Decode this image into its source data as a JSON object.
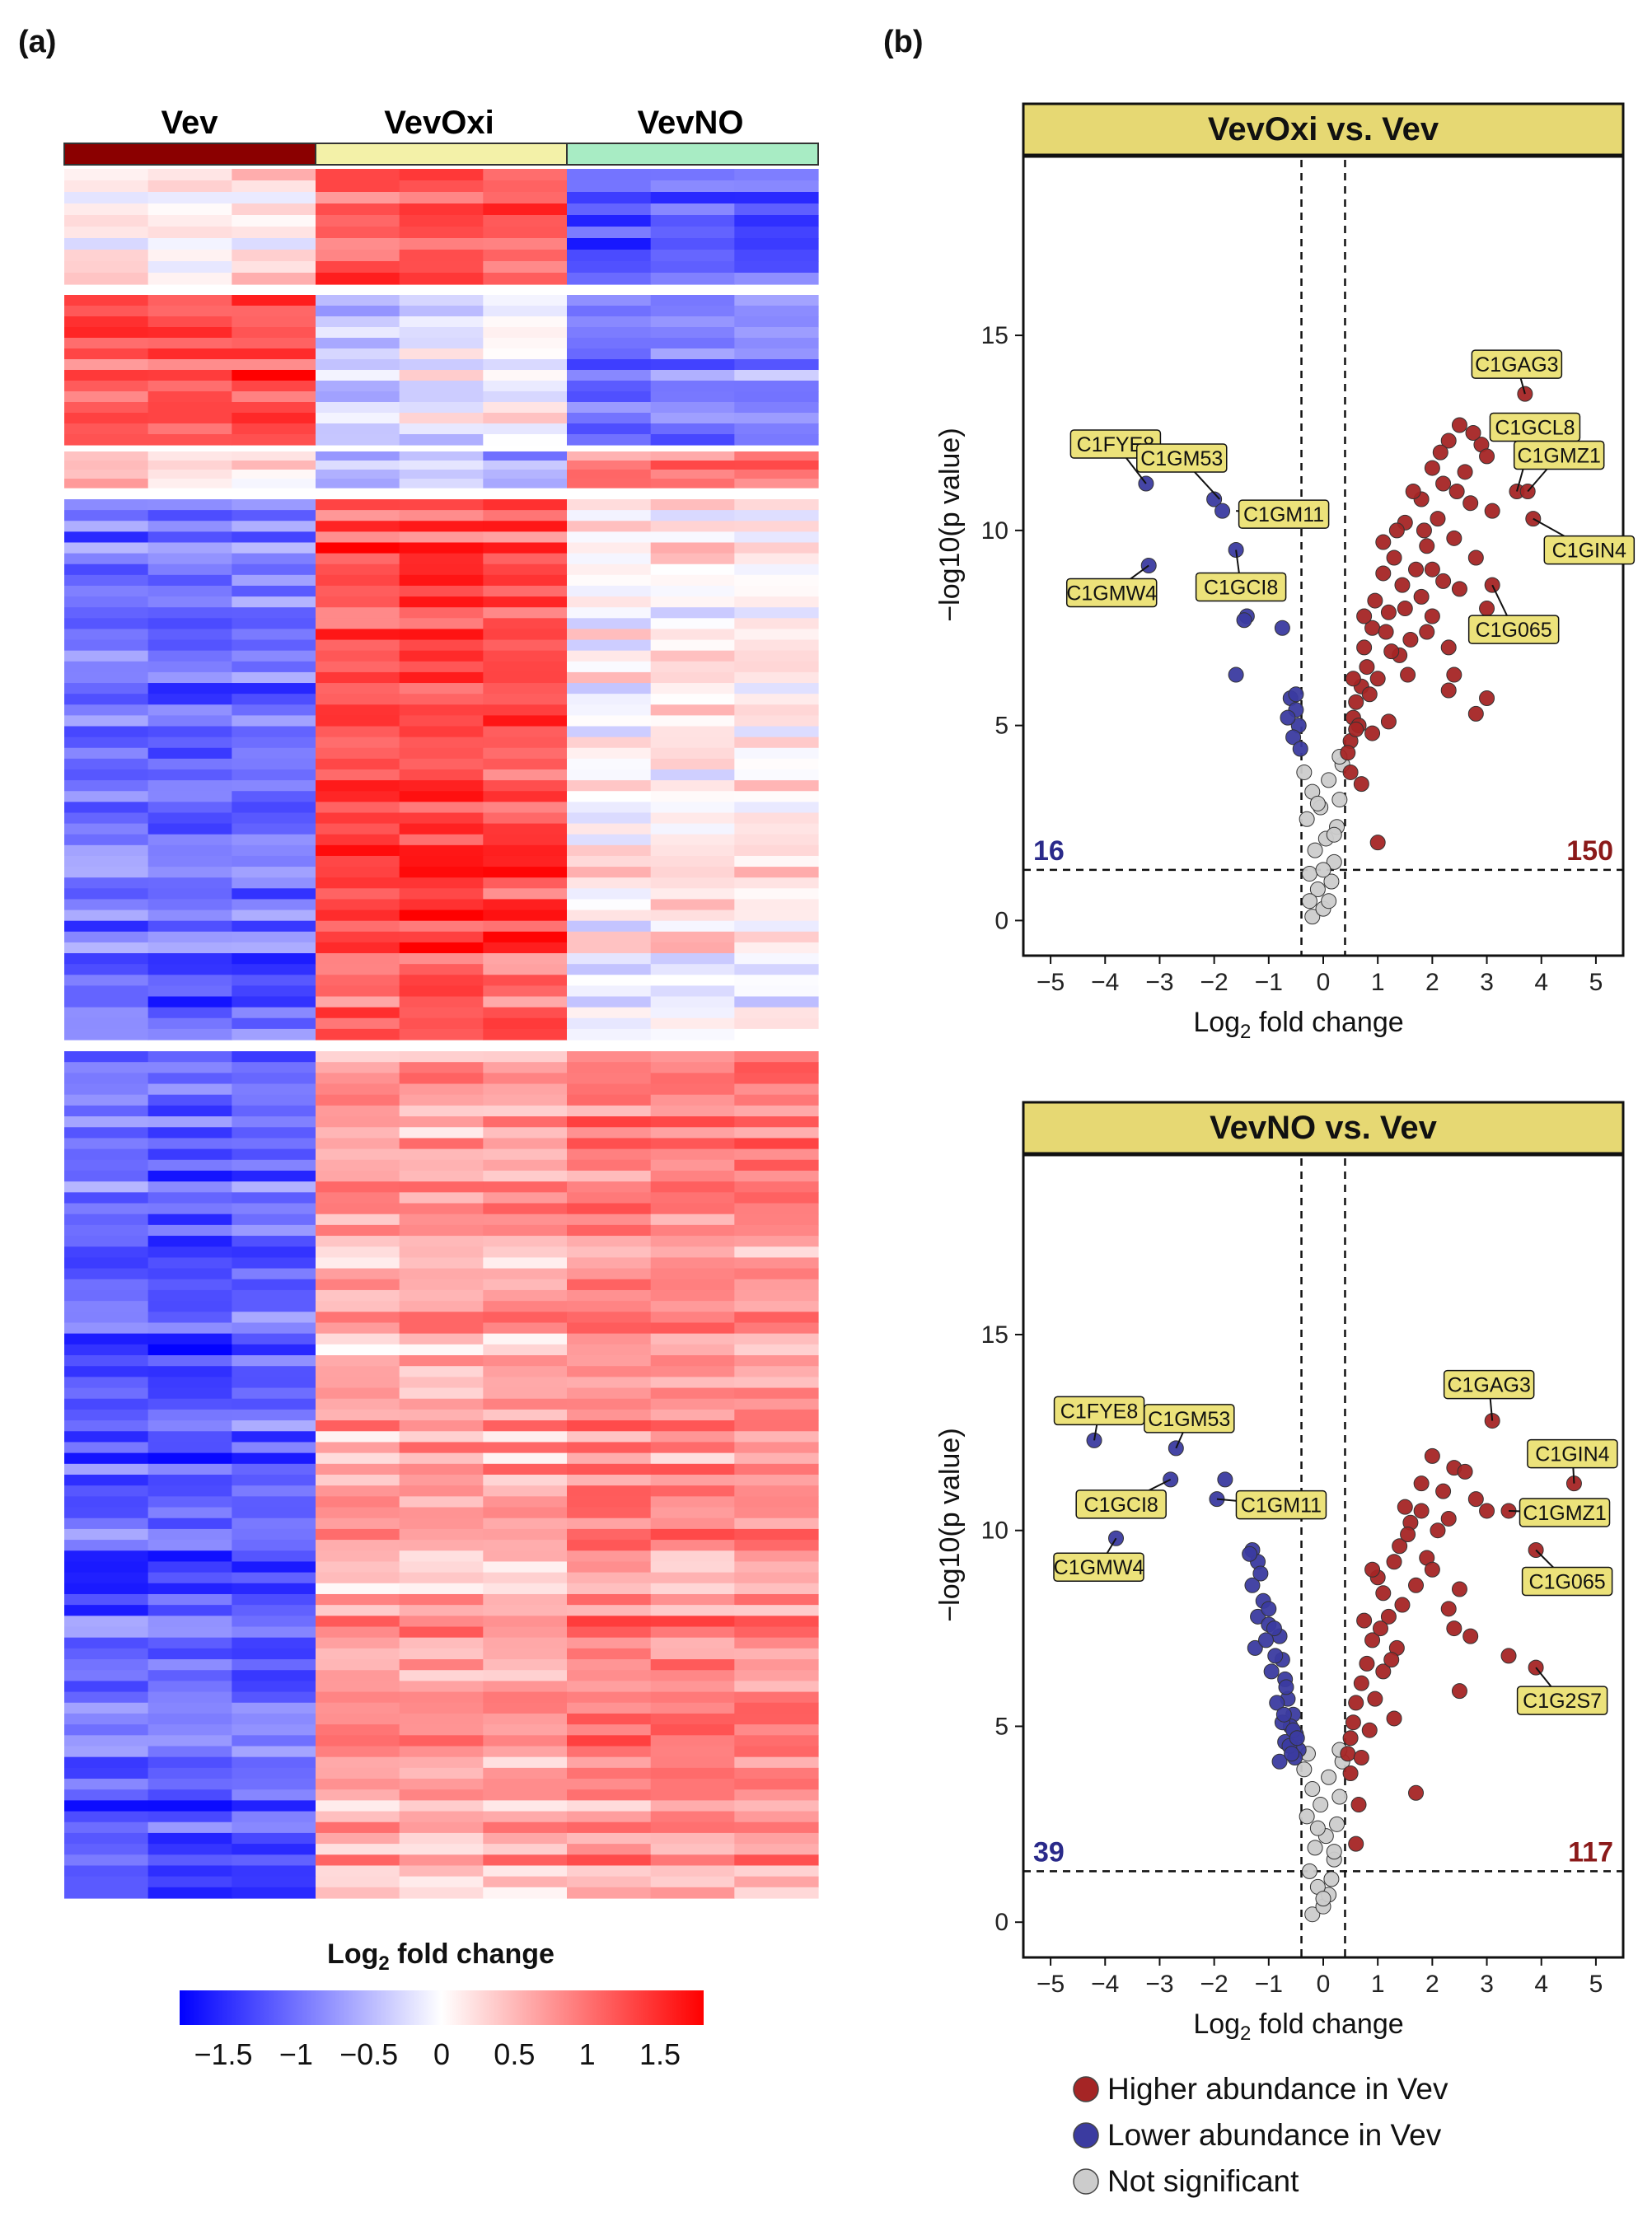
{
  "panel_labels": {
    "a": "(a)",
    "b": "(b)"
  },
  "heatmap": {
    "groups": [
      {
        "name": "Vev",
        "color": "#8b0000"
      },
      {
        "name": "VevOxi",
        "color": "#f3f1a8"
      },
      {
        "name": "VevNO",
        "color": "#a8ecc4"
      }
    ],
    "colorbar": {
      "title": "Log2 fold change",
      "ticks": [
        "−1.5",
        "−1",
        "−0.5",
        "0",
        "0.5",
        "1",
        "1.5"
      ],
      "tick_values": [
        -1.5,
        -1,
        -0.5,
        0,
        0.5,
        1,
        1.5
      ],
      "range": [
        -1.8,
        1.8
      ],
      "low_color": "#0000ff",
      "mid_color": "#ffffff",
      "high_color": "#ff0000"
    }
  },
  "chart_data": [
    {
      "type": "heatmap",
      "columns": [
        "Vev",
        "Vev",
        "Vev",
        "VevOxi",
        "VevOxi",
        "VevOxi",
        "VevNO",
        "VevNO",
        "VevNO"
      ],
      "clusters": [
        {
          "rows": 10,
          "mean_profile": [
            0.1,
            0.0,
            0.2,
            1.1,
            1.2,
            1.1,
            -1.3,
            -1.2,
            -1.2
          ]
        },
        {
          "rows": 14,
          "mean_profile": [
            1.2,
            1.3,
            1.3,
            -0.3,
            -0.2,
            -0.1,
            -1.0,
            -0.9,
            -0.9
          ]
        },
        {
          "rows": 4,
          "mean_profile": [
            0.4,
            0.2,
            0.1,
            -0.6,
            -0.5,
            -0.7,
            0.9,
            0.9,
            0.9
          ]
        },
        {
          "rows": 50,
          "mean_profile": [
            -1.0,
            -1.1,
            -1.0,
            1.2,
            1.3,
            1.2,
            0.0,
            0.1,
            0.1
          ]
        },
        {
          "rows": 78,
          "mean_profile": [
            -1.1,
            -1.2,
            -1.1,
            0.6,
            0.6,
            0.6,
            0.8,
            0.8,
            0.8
          ]
        }
      ]
    },
    {
      "type": "scatter",
      "title": "VevOxi vs. Vev",
      "xlabel": "Log2 fold change",
      "ylabel": "−log10(p value)",
      "xlim": [
        -5.5,
        5.5
      ],
      "ylim": [
        -0.9,
        19.5
      ],
      "xticks": [
        -5,
        -4,
        -3,
        -2,
        -1,
        0,
        1,
        2,
        3,
        4,
        5
      ],
      "yticks": [
        0,
        5,
        10,
        15
      ],
      "vlines": [
        -0.4,
        0.4
      ],
      "hline": 1.3,
      "count_down": "16",
      "count_up": "150",
      "labels": [
        {
          "text": "C1GAG3",
          "x": 3.7,
          "y": 13.5
        },
        {
          "text": "C1GCL8",
          "x": 3.55,
          "y": 11.0
        },
        {
          "text": "C1GMZ1",
          "x": 3.75,
          "y": 11.0
        },
        {
          "text": "C1GIN4",
          "x": 3.85,
          "y": 10.3
        },
        {
          "text": "C1G065",
          "x": 3.1,
          "y": 8.6
        },
        {
          "text": "C1FYE8",
          "x": -3.25,
          "y": 11.2
        },
        {
          "text": "C1GM53",
          "x": -1.9,
          "y": 10.8
        },
        {
          "text": "C1GM11",
          "x": -1.6,
          "y": 10.5
        },
        {
          "text": "C1GCI8",
          "x": -1.6,
          "y": 9.5
        },
        {
          "text": "C1GMW4",
          "x": -3.2,
          "y": 9.1
        }
      ],
      "down_points": [
        [
          -3.25,
          11.2
        ],
        [
          -3.2,
          9.1
        ],
        [
          -2.0,
          10.8
        ],
        [
          -1.85,
          10.5
        ],
        [
          -1.6,
          9.5
        ],
        [
          -1.4,
          7.8
        ],
        [
          -1.45,
          7.7
        ],
        [
          -1.6,
          6.3
        ],
        [
          -0.75,
          7.5
        ],
        [
          -0.6,
          5.7
        ],
        [
          -0.5,
          5.4
        ],
        [
          -0.45,
          5.0
        ],
        [
          -0.55,
          4.7
        ],
        [
          -0.42,
          4.4
        ],
        [
          -0.65,
          5.2
        ],
        [
          -0.5,
          5.8
        ]
      ],
      "up_points": [
        [
          3.7,
          13.5
        ],
        [
          3.55,
          11.0
        ],
        [
          3.75,
          11.0
        ],
        [
          3.85,
          10.3
        ],
        [
          3.1,
          8.6
        ],
        [
          2.5,
          12.7
        ],
        [
          2.3,
          12.3
        ],
        [
          2.9,
          12.2
        ],
        [
          2.0,
          11.6
        ],
        [
          3.0,
          11.9
        ],
        [
          2.2,
          11.2
        ],
        [
          1.8,
          10.8
        ],
        [
          2.7,
          10.7
        ],
        [
          3.1,
          10.5
        ],
        [
          1.5,
          10.2
        ],
        [
          2.4,
          9.8
        ],
        [
          1.9,
          9.6
        ],
        [
          2.8,
          9.3
        ],
        [
          2.0,
          9.0
        ],
        [
          2.5,
          8.5
        ],
        [
          3.0,
          8.0
        ],
        [
          2.3,
          7.0
        ],
        [
          2.4,
          6.3
        ],
        [
          2.3,
          5.9
        ],
        [
          2.8,
          5.3
        ],
        [
          3.0,
          5.7
        ],
        [
          2.0,
          7.8
        ],
        [
          1.8,
          8.3
        ],
        [
          1.6,
          7.2
        ],
        [
          1.4,
          6.8
        ],
        [
          1.2,
          7.9
        ],
        [
          1.1,
          8.9
        ],
        [
          1.3,
          9.3
        ],
        [
          0.9,
          7.5
        ],
        [
          0.8,
          6.5
        ],
        [
          0.7,
          6.0
        ],
        [
          0.6,
          5.6
        ],
        [
          0.55,
          5.2
        ],
        [
          0.5,
          4.6
        ],
        [
          0.45,
          4.3
        ],
        [
          0.5,
          3.8
        ],
        [
          0.7,
          3.5
        ],
        [
          1.0,
          2.0
        ],
        [
          1.0,
          6.2
        ],
        [
          1.2,
          5.1
        ],
        [
          0.9,
          4.8
        ],
        [
          0.65,
          5.0
        ],
        [
          0.75,
          7.0
        ],
        [
          1.5,
          8.0
        ],
        [
          1.7,
          9.0
        ],
        [
          1.35,
          10.0
        ],
        [
          2.1,
          10.3
        ],
        [
          1.65,
          11.0
        ],
        [
          2.6,
          11.5
        ],
        [
          2.2,
          8.7
        ],
        [
          1.9,
          7.4
        ],
        [
          1.55,
          6.3
        ],
        [
          0.85,
          5.8
        ],
        [
          0.6,
          4.9
        ],
        [
          1.1,
          9.7
        ],
        [
          1.45,
          8.6
        ],
        [
          2.15,
          12.0
        ],
        [
          2.75,
          12.5
        ],
        [
          0.95,
          8.2
        ],
        [
          0.75,
          7.8
        ],
        [
          1.25,
          6.9
        ],
        [
          0.55,
          6.2
        ],
        [
          1.85,
          10.0
        ],
        [
          2.45,
          11.0
        ],
        [
          1.15,
          7.4
        ]
      ],
      "ns_points": [
        [
          -0.2,
          0.1
        ],
        [
          0.0,
          0.3
        ],
        [
          0.1,
          0.5
        ],
        [
          -0.1,
          0.8
        ],
        [
          0.15,
          1.0
        ],
        [
          -0.25,
          1.2
        ],
        [
          0.2,
          1.5
        ],
        [
          -0.15,
          1.8
        ],
        [
          0.05,
          2.1
        ],
        [
          0.25,
          2.4
        ],
        [
          -0.3,
          2.6
        ],
        [
          -0.05,
          2.9
        ],
        [
          0.3,
          3.1
        ],
        [
          -0.2,
          3.3
        ],
        [
          0.1,
          3.6
        ],
        [
          -0.35,
          3.8
        ],
        [
          0.35,
          4.0
        ],
        [
          -0.1,
          3.0
        ],
        [
          0.2,
          2.2
        ],
        [
          -0.25,
          0.5
        ],
        [
          0.3,
          4.2
        ],
        [
          0.0,
          1.3
        ]
      ]
    },
    {
      "type": "scatter",
      "title": "VevNO vs. Vev",
      "xlabel": "Log2 fold change",
      "ylabel": "−log10(p value)",
      "xlim": [
        -5.5,
        5.5
      ],
      "ylim": [
        -0.9,
        19.5
      ],
      "xticks": [
        -5,
        -4,
        -3,
        -2,
        -1,
        0,
        1,
        2,
        3,
        4,
        5
      ],
      "yticks": [
        0,
        5,
        10,
        15
      ],
      "vlines": [
        -0.4,
        0.4
      ],
      "hline": 1.3,
      "count_down": "39",
      "count_up": "117",
      "labels": [
        {
          "text": "C1GAG3",
          "x": 3.1,
          "y": 12.8
        },
        {
          "text": "C1GIN4",
          "x": 4.6,
          "y": 11.2
        },
        {
          "text": "C1GMZ1",
          "x": 3.4,
          "y": 10.5
        },
        {
          "text": "C1G065",
          "x": 3.9,
          "y": 9.5
        },
        {
          "text": "C1G2S7",
          "x": 3.9,
          "y": 6.5
        },
        {
          "text": "C1FYE8",
          "x": -4.2,
          "y": 12.3
        },
        {
          "text": "C1GM53",
          "x": -2.7,
          "y": 12.1
        },
        {
          "text": "C1GCI8",
          "x": -2.8,
          "y": 11.3
        },
        {
          "text": "C1GM11",
          "x": -1.95,
          "y": 10.8
        },
        {
          "text": "C1GMW4",
          "x": -3.8,
          "y": 9.8
        }
      ],
      "down_points": [
        [
          -4.2,
          12.3
        ],
        [
          -2.7,
          12.1
        ],
        [
          -2.8,
          11.3
        ],
        [
          -1.8,
          11.3
        ],
        [
          -1.95,
          10.8
        ],
        [
          -3.8,
          9.8
        ],
        [
          -1.3,
          9.5
        ],
        [
          -1.2,
          9.2
        ],
        [
          -1.3,
          8.6
        ],
        [
          -1.1,
          8.2
        ],
        [
          -1.2,
          7.8
        ],
        [
          -1.0,
          7.6
        ],
        [
          -0.8,
          7.3
        ],
        [
          -0.75,
          6.7
        ],
        [
          -0.7,
          6.2
        ],
        [
          -0.65,
          5.7
        ],
        [
          -0.55,
          5.3
        ],
        [
          -0.5,
          4.8
        ],
        [
          -0.45,
          4.4
        ],
        [
          -0.8,
          4.1
        ],
        [
          -0.6,
          5.0
        ],
        [
          -0.9,
          7.5
        ],
        [
          -1.0,
          8.0
        ],
        [
          -1.15,
          8.9
        ],
        [
          -0.7,
          4.6
        ],
        [
          -0.52,
          4.2
        ],
        [
          -1.25,
          7.0
        ],
        [
          -0.95,
          6.4
        ],
        [
          -0.85,
          5.6
        ],
        [
          -0.75,
          5.1
        ],
        [
          -0.62,
          4.5
        ],
        [
          -0.55,
          4.9
        ],
        [
          -1.05,
          7.2
        ],
        [
          -0.68,
          6.0
        ],
        [
          -0.58,
          4.3
        ],
        [
          -0.48,
          4.7
        ],
        [
          -0.72,
          5.3
        ],
        [
          -1.35,
          9.4
        ],
        [
          -0.88,
          6.8
        ]
      ],
      "up_points": [
        [
          3.1,
          12.8
        ],
        [
          4.6,
          11.2
        ],
        [
          3.4,
          10.5
        ],
        [
          3.9,
          9.5
        ],
        [
          3.9,
          6.5
        ],
        [
          2.0,
          11.9
        ],
        [
          2.4,
          11.6
        ],
        [
          2.6,
          11.5
        ],
        [
          1.8,
          11.2
        ],
        [
          2.8,
          10.8
        ],
        [
          2.2,
          11.0
        ],
        [
          3.0,
          10.5
        ],
        [
          1.5,
          10.6
        ],
        [
          1.6,
          10.2
        ],
        [
          1.4,
          9.6
        ],
        [
          1.9,
          9.3
        ],
        [
          2.0,
          9.0
        ],
        [
          2.5,
          8.5
        ],
        [
          2.3,
          8.0
        ],
        [
          2.4,
          7.5
        ],
        [
          2.7,
          7.3
        ],
        [
          3.4,
          6.8
        ],
        [
          2.5,
          5.9
        ],
        [
          1.7,
          3.3
        ],
        [
          1.3,
          5.2
        ],
        [
          1.1,
          8.4
        ],
        [
          1.2,
          7.8
        ],
        [
          0.9,
          7.2
        ],
        [
          0.8,
          6.6
        ],
        [
          0.7,
          6.1
        ],
        [
          0.6,
          5.6
        ],
        [
          0.55,
          5.1
        ],
        [
          0.5,
          4.7
        ],
        [
          0.45,
          4.3
        ],
        [
          0.5,
          3.8
        ],
        [
          0.6,
          2.0
        ],
        [
          0.65,
          3.0
        ],
        [
          1.0,
          8.8
        ],
        [
          1.3,
          9.2
        ],
        [
          1.1,
          6.4
        ],
        [
          0.95,
          5.7
        ],
        [
          0.85,
          4.9
        ],
        [
          1.45,
          8.1
        ],
        [
          1.7,
          8.6
        ],
        [
          1.35,
          7.0
        ],
        [
          0.75,
          7.7
        ],
        [
          2.1,
          10.0
        ],
        [
          1.55,
          9.9
        ],
        [
          1.8,
          10.5
        ],
        [
          2.3,
          10.3
        ],
        [
          1.25,
          6.7
        ],
        [
          0.7,
          4.2
        ],
        [
          1.05,
          7.5
        ],
        [
          0.9,
          9.0
        ]
      ],
      "ns_points": [
        [
          -0.2,
          0.2
        ],
        [
          0.0,
          0.4
        ],
        [
          0.1,
          0.7
        ],
        [
          -0.1,
          0.9
        ],
        [
          0.15,
          1.1
        ],
        [
          -0.25,
          1.3
        ],
        [
          0.2,
          1.6
        ],
        [
          -0.15,
          1.9
        ],
        [
          0.05,
          2.2
        ],
        [
          0.25,
          2.5
        ],
        [
          -0.3,
          2.7
        ],
        [
          -0.05,
          3.0
        ],
        [
          0.3,
          3.2
        ],
        [
          -0.2,
          3.4
        ],
        [
          0.1,
          3.7
        ],
        [
          -0.35,
          3.9
        ],
        [
          0.35,
          4.1
        ],
        [
          -0.1,
          2.4
        ],
        [
          0.2,
          1.8
        ],
        [
          0.0,
          0.6
        ],
        [
          0.3,
          4.4
        ],
        [
          -0.28,
          4.3
        ]
      ]
    }
  ],
  "legend": {
    "items": [
      {
        "label": "Higher abundance in Vev",
        "color": "#a52525"
      },
      {
        "label": "Lower abundance in Vev",
        "color": "#3b3ba0"
      },
      {
        "label": "Not significant",
        "color": "#cccccc"
      }
    ]
  },
  "colors": {
    "up": "#a52525",
    "down": "#3b3ba0",
    "ns": "#cccccc",
    "strip": "#e6d873",
    "label_box": "#ece27a",
    "count_down": "#2a2a8a",
    "count_up": "#8b1a1a"
  }
}
